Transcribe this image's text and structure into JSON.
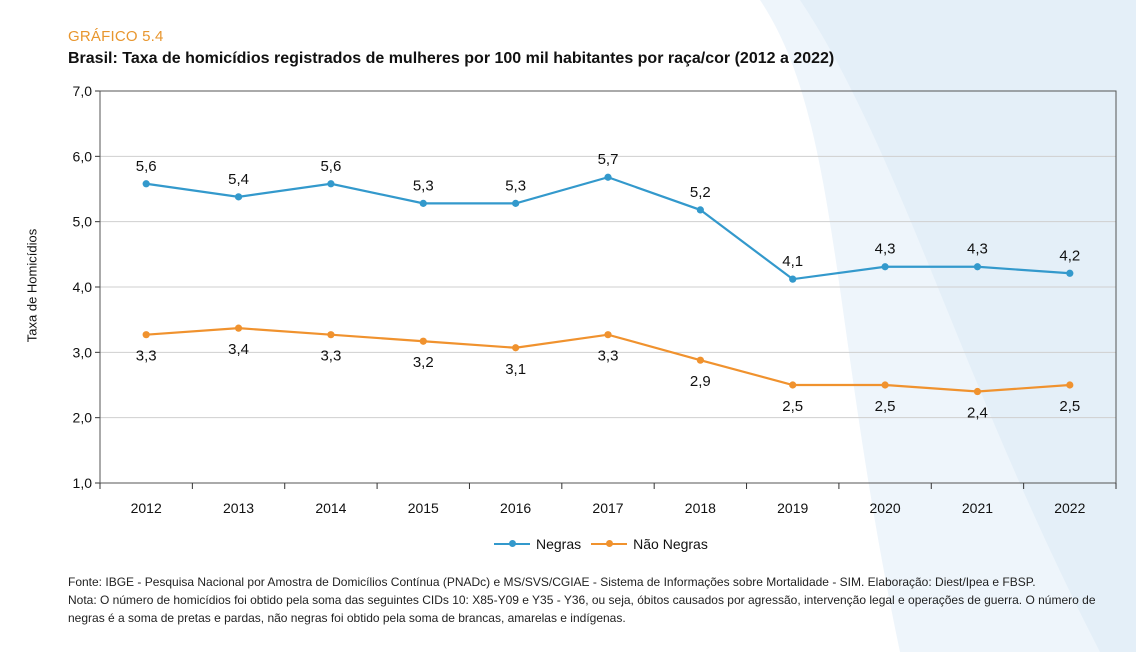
{
  "header": {
    "tag": "GRÁFICO 5.4",
    "title": "Brasil: Taxa de homicídios registrados de mulheres por 100 mil habitantes por raça/cor (2012 a 2022)"
  },
  "colors": {
    "negras": "#3399cc",
    "nao_negras": "#f0922e",
    "tag": "#e8962e",
    "wave": "#eaf3fa"
  },
  "chart_data": {
    "type": "line",
    "ylabel": "Taxa de Homicídios",
    "xlabel": "",
    "ylim": [
      1,
      7
    ],
    "yticks": [
      "1,0",
      "2,0",
      "3,0",
      "4,0",
      "5,0",
      "6,0",
      "7,0"
    ],
    "categories": [
      "2012",
      "2013",
      "2014",
      "2015",
      "2016",
      "2017",
      "2018",
      "2019",
      "2020",
      "2021",
      "2022"
    ],
    "grid": true,
    "legend_position": "bottom",
    "series": [
      {
        "name": "Negras",
        "values": [
          5.58,
          5.38,
          5.58,
          5.28,
          5.28,
          5.68,
          5.18,
          4.12,
          4.31,
          4.31,
          4.21
        ],
        "labels": [
          "5,6",
          "5,4",
          "5,6",
          "5,3",
          "5,3",
          "5,7",
          "5,2",
          "4,1",
          "4,3",
          "4,3",
          "4,2"
        ]
      },
      {
        "name": "Não Negras",
        "values": [
          3.27,
          3.37,
          3.27,
          3.17,
          3.07,
          3.27,
          2.88,
          2.5,
          2.5,
          2.4,
          2.5
        ],
        "labels": [
          "3,3",
          "3,4",
          "3,3",
          "3,2",
          "3,1",
          "3,3",
          "2,9",
          "2,5",
          "2,5",
          "2,4",
          "2,5"
        ]
      }
    ]
  },
  "footer": {
    "source": "Fonte: IBGE - Pesquisa Nacional por Amostra de Domicílios Contínua (PNADc) e MS/SVS/CGIAE - Sistema de Informações sobre Mortalidade - SIM. Elaboração: Diest/Ipea e FBSP.",
    "note": "Nota: O número de homicídios foi obtido pela soma das seguintes CIDs 10: X85-Y09 e Y35 - Y36, ou seja, óbitos causados por agressão, intervenção legal e operações de guerra. O número de negras é a soma de pretas e pardas, não negras foi obtido pela soma de brancas, amarelas e indígenas."
  }
}
